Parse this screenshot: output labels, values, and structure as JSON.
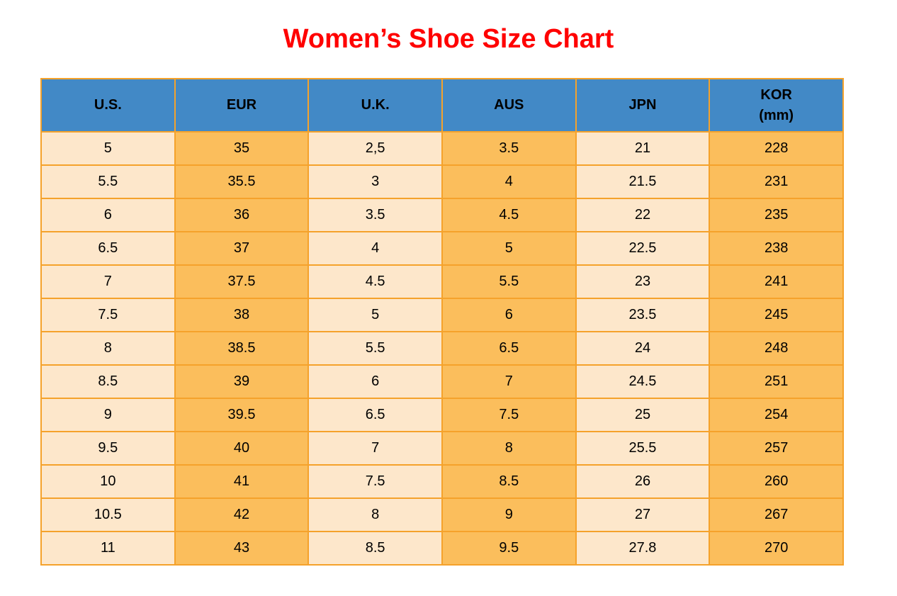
{
  "page": {
    "title": "Women’s Shoe Size Chart"
  },
  "colors": {
    "title": "#FF0000",
    "header_bg": "#4289C6",
    "cell_light": "#FDE7CB",
    "cell_dark": "#FBBE5C",
    "border": "#F5A22B",
    "text": "#000000"
  },
  "header": [
    {
      "label": "U.S."
    },
    {
      "label": "EUR"
    },
    {
      "label": "U.K."
    },
    {
      "label": "AUS"
    },
    {
      "label": "JPN"
    },
    {
      "label": "KOR",
      "sublabel": "(mm)"
    }
  ],
  "chart_data": {
    "type": "table",
    "title": "Women’s Shoe Size Chart",
    "columns": [
      "U.S.",
      "EUR",
      "U.K.",
      "AUS",
      "JPN",
      "KOR (mm)"
    ],
    "rows": [
      [
        "5",
        "35",
        "2,5",
        "3.5",
        "21",
        "228"
      ],
      [
        "5.5",
        "35.5",
        "3",
        "4",
        "21.5",
        "231"
      ],
      [
        "6",
        "36",
        "3.5",
        "4.5",
        "22",
        "235"
      ],
      [
        "6.5",
        "37",
        "4",
        "5",
        "22.5",
        "238"
      ],
      [
        "7",
        "37.5",
        "4.5",
        "5.5",
        "23",
        "241"
      ],
      [
        "7.5",
        "38",
        "5",
        "6",
        "23.5",
        "245"
      ],
      [
        "8",
        "38.5",
        "5.5",
        "6.5",
        "24",
        "248"
      ],
      [
        "8.5",
        "39",
        "6",
        "7",
        "24.5",
        "251"
      ],
      [
        "9",
        "39.5",
        "6.5",
        "7.5",
        "25",
        "254"
      ],
      [
        "9.5",
        "40",
        "7",
        "8",
        "25.5",
        "257"
      ],
      [
        "10",
        "41",
        "7.5",
        "8.5",
        "26",
        "260"
      ],
      [
        "10.5",
        "42",
        "8",
        "9",
        "27",
        "267"
      ],
      [
        "11",
        "43",
        "8.5",
        "9.5",
        "27.8",
        "270"
      ]
    ]
  }
}
